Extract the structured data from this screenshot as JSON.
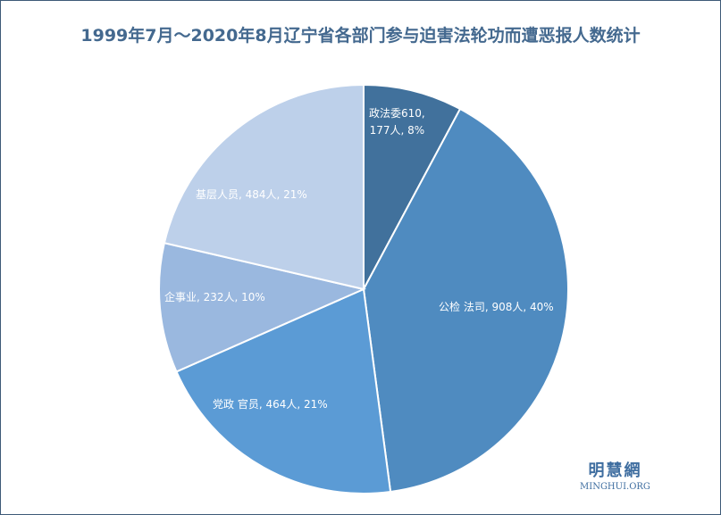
{
  "chart_data": {
    "type": "pie",
    "title": "1999年7月～2020年8月辽宁省各部门参与迫害法轮功而遭恶报人数统计",
    "start_angle": "top",
    "direction": "clockwise",
    "slices": [
      {
        "label_lines": [
          "政法委610,",
          "177人, 8%"
        ],
        "value": 177,
        "percent": 8,
        "color": "#41719c"
      },
      {
        "label_lines": [
          "公检 法司, 908人, 40%"
        ],
        "value": 908,
        "percent": 40,
        "color": "#4f8bc0"
      },
      {
        "label_lines": [
          "党政 官员, 464人, 21%"
        ],
        "value": 464,
        "percent": 21,
        "color": "#5b9bd5"
      },
      {
        "label_lines": [
          "企事业, 232人, 10%"
        ],
        "value": 232,
        "percent": 10,
        "color": "#9ab8df"
      },
      {
        "label_lines": [
          "基层人员, 484人, 21%"
        ],
        "value": 484,
        "percent": 21,
        "color": "#bdd0ea"
      }
    ]
  },
  "logo": {
    "cn": "明慧網",
    "en": "MINGHUI.ORG"
  }
}
